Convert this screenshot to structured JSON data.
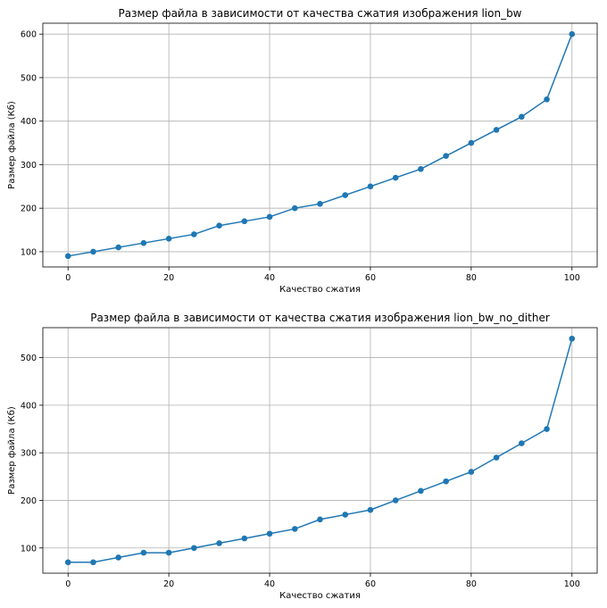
{
  "chart_data": [
    {
      "type": "line",
      "title": "Размер файла в зависимости от качества сжатия изображения lion_bw",
      "xlabel": "Качество сжатия",
      "ylabel": "Размер файла (Кб)",
      "xlim": [
        -5,
        105
      ],
      "ylim": [
        65,
        625
      ],
      "xticks": [
        0,
        20,
        40,
        60,
        80,
        100
      ],
      "yticks": [
        100,
        200,
        300,
        400,
        500,
        600
      ],
      "grid": true,
      "marker": "circle",
      "color": "#1f77b4",
      "x": [
        0,
        5,
        10,
        15,
        20,
        25,
        30,
        35,
        40,
        45,
        50,
        55,
        60,
        65,
        70,
        75,
        80,
        85,
        90,
        95,
        100
      ],
      "y": [
        90,
        100,
        110,
        120,
        130,
        140,
        160,
        170,
        180,
        200,
        210,
        230,
        250,
        270,
        290,
        320,
        350,
        380,
        410,
        450,
        600
      ]
    },
    {
      "type": "line",
      "title": "Размер файла в зависимости от качества сжатия изображения lion_bw_no_dither",
      "xlabel": "Качество сжатия",
      "ylabel": "Размер файла (Кб)",
      "xlim": [
        -5,
        105
      ],
      "ylim": [
        47,
        563
      ],
      "xticks": [
        0,
        20,
        40,
        60,
        80,
        100
      ],
      "yticks": [
        100,
        200,
        300,
        400,
        500
      ],
      "grid": true,
      "marker": "circle",
      "color": "#1f77b4",
      "x": [
        0,
        5,
        10,
        15,
        20,
        25,
        30,
        35,
        40,
        45,
        50,
        55,
        60,
        65,
        70,
        75,
        80,
        85,
        90,
        95,
        100
      ],
      "y": [
        70,
        70,
        80,
        90,
        90,
        100,
        110,
        120,
        130,
        140,
        160,
        170,
        180,
        200,
        220,
        240,
        260,
        290,
        320,
        350,
        540
      ]
    }
  ]
}
